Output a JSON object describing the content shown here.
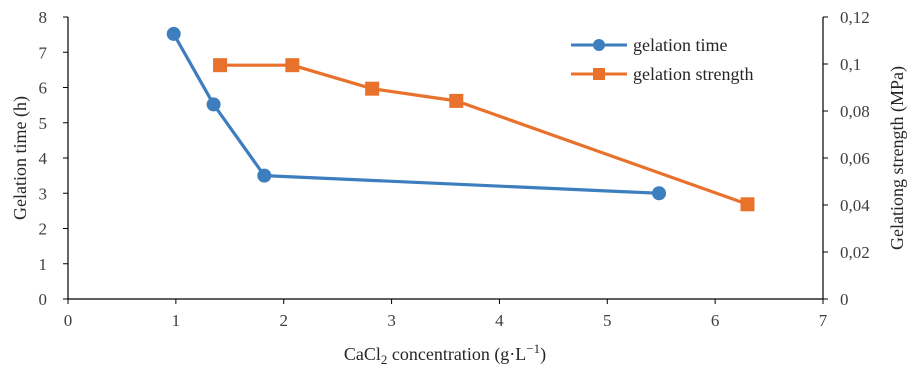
{
  "chart_data": {
    "type": "line",
    "xlabel": "CaCl2 concentration (g·L−1)",
    "xlabel_parts": {
      "pre": "CaCl",
      "sub": "2",
      "mid": " concentration (g·L",
      "sup": "−1",
      "post": ")"
    },
    "ylabel_left": "Gelation time (h)",
    "ylabel_right": "Gelationg strength (MPa)",
    "xlim": [
      0,
      7
    ],
    "ylim_left": [
      0,
      8
    ],
    "ylim_right": [
      0,
      0.12
    ],
    "x_ticks": [
      "0",
      "1",
      "2",
      "3",
      "4",
      "5",
      "6",
      "7"
    ],
    "y_left_ticks": [
      "0",
      "1",
      "2",
      "3",
      "4",
      "5",
      "6",
      "7",
      "8"
    ],
    "y_right_ticks": [
      "0",
      "0,02",
      "0,04",
      "0,06",
      "0,08",
      "0,1",
      "0,12"
    ],
    "legend_position": "top-right",
    "grid": false,
    "series": [
      {
        "name": "gelation time",
        "axis": "left",
        "color": "#3d7ebf",
        "marker": "circle",
        "x": [
          0.98,
          1.35,
          1.82,
          5.48
        ],
        "y": [
          7.52,
          5.52,
          3.5,
          3.0
        ]
      },
      {
        "name": "gelation strength",
        "axis": "right",
        "color": "#e8722c",
        "marker": "square",
        "x": [
          1.41,
          2.08,
          2.82,
          3.6,
          6.3
        ],
        "y": [
          0.0995,
          0.0995,
          0.0895,
          0.0843,
          0.0403
        ]
      }
    ]
  }
}
